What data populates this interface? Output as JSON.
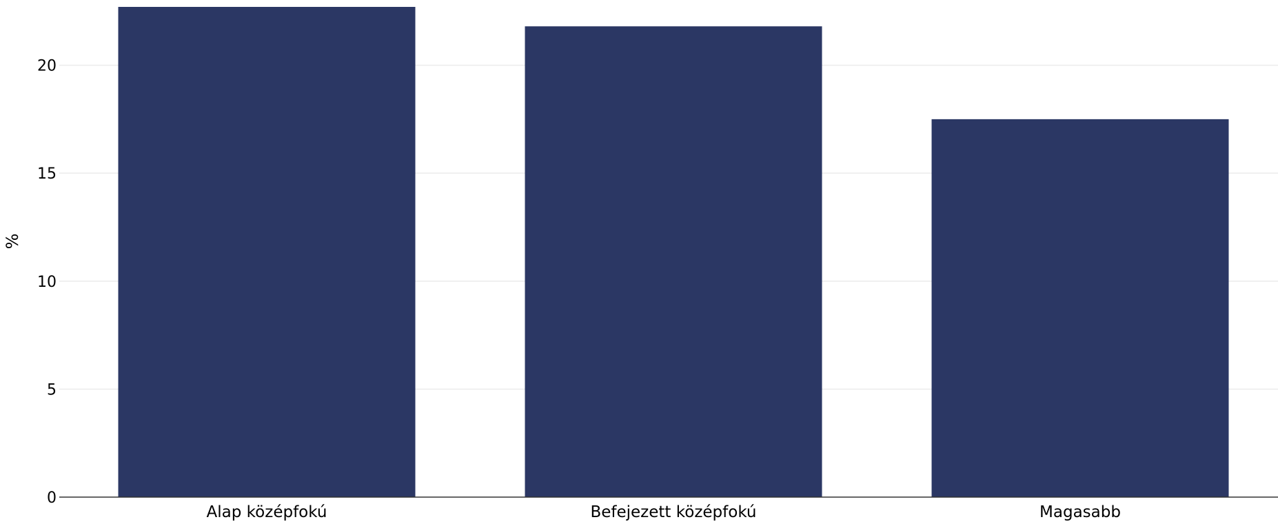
{
  "chart_data": {
    "type": "bar",
    "categories": [
      "Alap középfokú",
      "Befejezett középfokú",
      "Magasabb"
    ],
    "values": [
      22.7,
      21.8,
      17.5
    ],
    "ylabel": "%",
    "xlabel": "",
    "ylim": [
      0,
      22.7
    ],
    "yticks": [
      0,
      5,
      10,
      15,
      20
    ],
    "grid": true,
    "legend": "none",
    "colors": {
      "bar": "#2b3764",
      "grid": "#ebebeb",
      "axis": "#333333"
    }
  }
}
